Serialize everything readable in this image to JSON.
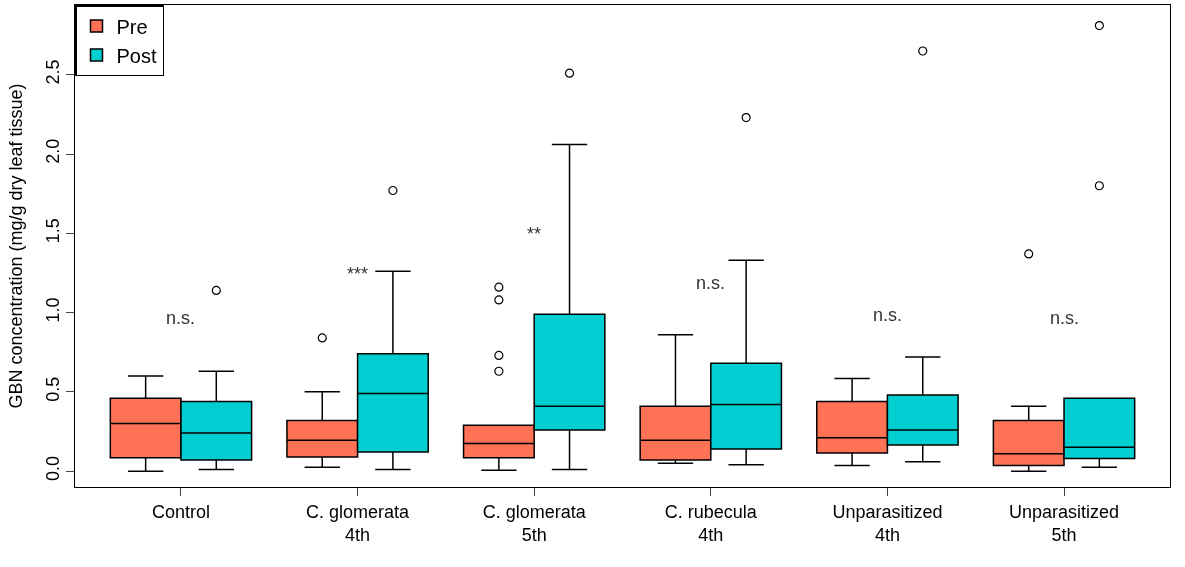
{
  "chart_data": {
    "type": "box",
    "ylabel": "GBN concentration (mg/g dry leaf tissue)",
    "categories": [
      "Control",
      "C. glomerata\n4th",
      "C. glomerata\n5th",
      "C. rubecula\n4th",
      "Unparasitized\n4th",
      "Unparasitized\n5th"
    ],
    "ylim": [
      -0.1,
      2.94
    ],
    "yticks": [
      {
        "value": 0,
        "label": "0.0"
      },
      {
        "value": 0.5,
        "label": "0.5"
      },
      {
        "value": 1.0,
        "label": "1.0"
      },
      {
        "value": 1.5,
        "label": "1.5"
      },
      {
        "value": 2.0,
        "label": "2.0"
      },
      {
        "value": 2.5,
        "label": "2.5"
      }
    ],
    "legend": "top left",
    "series": [
      {
        "name": "Pre",
        "color": "#ff7256",
        "boxes": [
          {
            "low": 0.0,
            "q1": 0.085,
            "median": 0.3,
            "q3": 0.46,
            "high": 0.6
          },
          {
            "low": 0.025,
            "q1": 0.09,
            "median": 0.195,
            "q3": 0.32,
            "high": 0.5,
            "outliers": [
              0.84
            ]
          },
          {
            "low": 0.005,
            "q1": 0.085,
            "median": 0.175,
            "q3": 0.29,
            "high": 0.29,
            "outliers": [
              0.63,
              0.73,
              1.08,
              1.16
            ]
          },
          {
            "low": 0.05,
            "q1": 0.07,
            "median": 0.195,
            "q3": 0.41,
            "high": 0.86
          },
          {
            "low": 0.035,
            "q1": 0.115,
            "median": 0.21,
            "q3": 0.44,
            "high": 0.585
          },
          {
            "low": 0.0,
            "q1": 0.035,
            "median": 0.11,
            "q3": 0.32,
            "high": 0.41,
            "outliers": [
              1.37
            ]
          }
        ]
      },
      {
        "name": "Post",
        "color": "#00ced1",
        "boxes": [
          {
            "low": 0.01,
            "q1": 0.07,
            "median": 0.24,
            "q3": 0.44,
            "high": 0.63,
            "outliers": [
              1.14
            ]
          },
          {
            "low": 0.01,
            "q1": 0.12,
            "median": 0.49,
            "q3": 0.74,
            "high": 1.26,
            "outliers": [
              1.77
            ]
          },
          {
            "low": 0.01,
            "q1": 0.26,
            "median": 0.41,
            "q3": 0.99,
            "high": 2.06,
            "outliers": [
              2.51
            ]
          },
          {
            "low": 0.04,
            "q1": 0.14,
            "median": 0.42,
            "q3": 0.68,
            "high": 1.33,
            "outliers": [
              2.23
            ]
          },
          {
            "low": 0.06,
            "q1": 0.165,
            "median": 0.26,
            "q3": 0.48,
            "high": 0.72,
            "outliers": [
              2.65
            ]
          },
          {
            "low": 0.025,
            "q1": 0.08,
            "median": 0.15,
            "q3": 0.46,
            "high": 0.46,
            "outliers": [
              1.8,
              2.81
            ]
          }
        ]
      }
    ],
    "annotations": [
      "n.s.",
      "***",
      "**",
      "n.s.",
      "n.s.",
      "n.s."
    ]
  }
}
